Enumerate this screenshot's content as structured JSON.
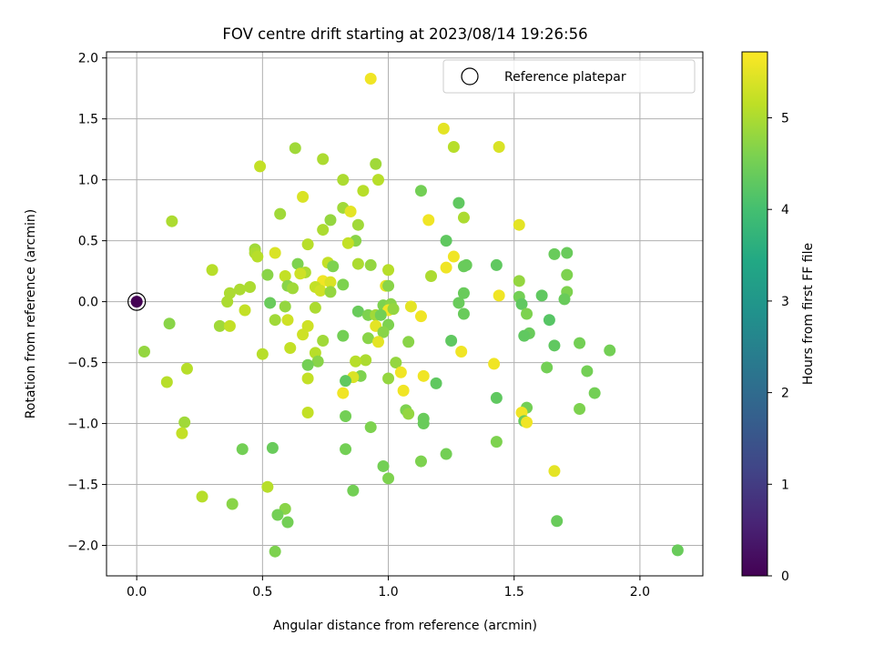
{
  "chart_data": {
    "type": "scatter",
    "title": "FOV centre drift starting at 2023/08/14 19:26:56",
    "xlabel": "Angular distance from reference (arcmin)",
    "ylabel": "Rotation from reference (arcmin)",
    "xlim": [
      -0.12,
      2.25
    ],
    "ylim": [
      -2.25,
      2.05
    ],
    "xticks": [
      0.0,
      0.5,
      1.0,
      1.5,
      2.0
    ],
    "xtick_labels": [
      "0.0",
      "0.5",
      "1.0",
      "1.5",
      "2.0"
    ],
    "yticks": [
      -2.0,
      -1.5,
      -1.0,
      -0.5,
      0.0,
      0.5,
      1.0,
      1.5,
      2.0
    ],
    "ytick_labels": [
      "−2.0",
      "−1.5",
      "−1.0",
      "−0.5",
      "0.0",
      "0.5",
      "1.0",
      "1.5",
      "2.0"
    ],
    "grid": true,
    "legend": {
      "position": "top-right",
      "entries": [
        "Reference platepar"
      ]
    },
    "colorbar": {
      "label": "Hours from first FF file",
      "colormap": "viridis",
      "range": [
        0,
        5.72
      ],
      "ticks": [
        0,
        1,
        2,
        3,
        4,
        5
      ],
      "tick_labels": [
        "0",
        "1",
        "2",
        "3",
        "4",
        "5"
      ]
    },
    "reference_point": {
      "x": 0.0,
      "y": 0.0,
      "c": 0.0
    },
    "points": [
      {
        "x": 0.93,
        "y": 1.83,
        "c": 5.6
      },
      {
        "x": 1.22,
        "y": 1.42,
        "c": 5.5
      },
      {
        "x": 1.44,
        "y": 1.27,
        "c": 5.4
      },
      {
        "x": 1.26,
        "y": 1.27,
        "c": 5.1
      },
      {
        "x": 0.63,
        "y": 1.26,
        "c": 4.9
      },
      {
        "x": 0.74,
        "y": 1.17,
        "c": 5.0
      },
      {
        "x": 0.49,
        "y": 1.11,
        "c": 5.2
      },
      {
        "x": 0.95,
        "y": 1.13,
        "c": 4.9
      },
      {
        "x": 0.82,
        "y": 1.0,
        "c": 5.0
      },
      {
        "x": 0.96,
        "y": 1.0,
        "c": 5.1
      },
      {
        "x": 0.9,
        "y": 0.91,
        "c": 5.1
      },
      {
        "x": 1.13,
        "y": 0.91,
        "c": 4.5
      },
      {
        "x": 0.66,
        "y": 0.86,
        "c": 5.4
      },
      {
        "x": 1.28,
        "y": 0.81,
        "c": 4.3
      },
      {
        "x": 0.82,
        "y": 0.77,
        "c": 4.9
      },
      {
        "x": 0.85,
        "y": 0.74,
        "c": 5.5
      },
      {
        "x": 0.57,
        "y": 0.72,
        "c": 4.9
      },
      {
        "x": 1.3,
        "y": 0.69,
        "c": 5.0
      },
      {
        "x": 0.14,
        "y": 0.66,
        "c": 5.0
      },
      {
        "x": 1.16,
        "y": 0.67,
        "c": 5.6
      },
      {
        "x": 0.77,
        "y": 0.67,
        "c": 4.8
      },
      {
        "x": 0.74,
        "y": 0.59,
        "c": 5.0
      },
      {
        "x": 0.88,
        "y": 0.63,
        "c": 4.9
      },
      {
        "x": 1.52,
        "y": 0.63,
        "c": 5.5
      },
      {
        "x": 1.23,
        "y": 0.5,
        "c": 4.3
      },
      {
        "x": 0.87,
        "y": 0.5,
        "c": 4.7
      },
      {
        "x": 0.68,
        "y": 0.47,
        "c": 5.1
      },
      {
        "x": 0.84,
        "y": 0.48,
        "c": 5.2
      },
      {
        "x": 0.47,
        "y": 0.43,
        "c": 4.9
      },
      {
        "x": 0.47,
        "y": 0.4,
        "c": 5.0
      },
      {
        "x": 0.55,
        "y": 0.4,
        "c": 5.4
      },
      {
        "x": 1.66,
        "y": 0.39,
        "c": 4.4
      },
      {
        "x": 1.71,
        "y": 0.4,
        "c": 4.4
      },
      {
        "x": 1.26,
        "y": 0.37,
        "c": 5.6
      },
      {
        "x": 0.48,
        "y": 0.37,
        "c": 5.1
      },
      {
        "x": 0.64,
        "y": 0.31,
        "c": 4.6
      },
      {
        "x": 0.76,
        "y": 0.32,
        "c": 5.2
      },
      {
        "x": 0.78,
        "y": 0.29,
        "c": 4.6
      },
      {
        "x": 0.88,
        "y": 0.31,
        "c": 5.0
      },
      {
        "x": 0.93,
        "y": 0.3,
        "c": 4.8
      },
      {
        "x": 1.31,
        "y": 0.3,
        "c": 4.4
      },
      {
        "x": 1.43,
        "y": 0.3,
        "c": 4.3
      },
      {
        "x": 1.23,
        "y": 0.28,
        "c": 5.6
      },
      {
        "x": 1.3,
        "y": 0.29,
        "c": 4.4
      },
      {
        "x": 0.3,
        "y": 0.26,
        "c": 5.1
      },
      {
        "x": 1.0,
        "y": 0.26,
        "c": 5.1
      },
      {
        "x": 0.67,
        "y": 0.24,
        "c": 5.0
      },
      {
        "x": 0.65,
        "y": 0.23,
        "c": 5.3
      },
      {
        "x": 0.59,
        "y": 0.21,
        "c": 5.2
      },
      {
        "x": 1.71,
        "y": 0.22,
        "c": 4.6
      },
      {
        "x": 0.52,
        "y": 0.22,
        "c": 4.7
      },
      {
        "x": 1.17,
        "y": 0.21,
        "c": 5.0
      },
      {
        "x": 0.74,
        "y": 0.17,
        "c": 5.6
      },
      {
        "x": 0.77,
        "y": 0.16,
        "c": 5.4
      },
      {
        "x": 1.52,
        "y": 0.17,
        "c": 4.8
      },
      {
        "x": 0.82,
        "y": 0.14,
        "c": 4.6
      },
      {
        "x": 0.99,
        "y": 0.13,
        "c": 5.5
      },
      {
        "x": 1.0,
        "y": 0.13,
        "c": 4.7
      },
      {
        "x": 0.6,
        "y": 0.13,
        "c": 4.7
      },
      {
        "x": 0.71,
        "y": 0.12,
        "c": 5.2
      },
      {
        "x": 0.45,
        "y": 0.12,
        "c": 5.0
      },
      {
        "x": 0.62,
        "y": 0.11,
        "c": 4.9
      },
      {
        "x": 0.41,
        "y": 0.1,
        "c": 5.0
      },
      {
        "x": 0.73,
        "y": 0.09,
        "c": 5.3
      },
      {
        "x": 0.77,
        "y": 0.08,
        "c": 4.8
      },
      {
        "x": 1.71,
        "y": 0.08,
        "c": 4.6
      },
      {
        "x": 0.37,
        "y": 0.07,
        "c": 5.0
      },
      {
        "x": 1.3,
        "y": 0.07,
        "c": 4.4
      },
      {
        "x": 1.44,
        "y": 0.05,
        "c": 5.6
      },
      {
        "x": 1.61,
        "y": 0.05,
        "c": 4.3
      },
      {
        "x": 1.52,
        "y": 0.04,
        "c": 4.5
      },
      {
        "x": 1.7,
        "y": 0.02,
        "c": 4.4
      },
      {
        "x": 0.36,
        "y": 0.0,
        "c": 5.0
      },
      {
        "x": 0.53,
        "y": -0.01,
        "c": 4.4
      },
      {
        "x": 1.28,
        "y": -0.01,
        "c": 4.4
      },
      {
        "x": 0.98,
        "y": -0.03,
        "c": 4.6
      },
      {
        "x": 1.01,
        "y": -0.02,
        "c": 4.7
      },
      {
        "x": 1.53,
        "y": -0.02,
        "c": 4.3
      },
      {
        "x": 1.09,
        "y": -0.04,
        "c": 5.5
      },
      {
        "x": 0.59,
        "y": -0.04,
        "c": 4.8
      },
      {
        "x": 0.71,
        "y": -0.05,
        "c": 5.0
      },
      {
        "x": 1.0,
        "y": -0.07,
        "c": 5.6
      },
      {
        "x": 1.02,
        "y": -0.06,
        "c": 4.8
      },
      {
        "x": 0.43,
        "y": -0.07,
        "c": 5.2
      },
      {
        "x": 0.88,
        "y": -0.08,
        "c": 4.4
      },
      {
        "x": 1.55,
        "y": -0.1,
        "c": 4.6
      },
      {
        "x": 1.3,
        "y": -0.1,
        "c": 4.4
      },
      {
        "x": 0.92,
        "y": -0.11,
        "c": 4.6
      },
      {
        "x": 0.95,
        "y": -0.11,
        "c": 4.9
      },
      {
        "x": 0.97,
        "y": -0.11,
        "c": 4.5
      },
      {
        "x": 1.13,
        "y": -0.12,
        "c": 5.6
      },
      {
        "x": 0.55,
        "y": -0.15,
        "c": 4.9
      },
      {
        "x": 0.6,
        "y": -0.15,
        "c": 5.3
      },
      {
        "x": 1.64,
        "y": -0.15,
        "c": 4.2
      },
      {
        "x": 0.13,
        "y": -0.18,
        "c": 4.7
      },
      {
        "x": 0.33,
        "y": -0.2,
        "c": 4.9
      },
      {
        "x": 0.37,
        "y": -0.2,
        "c": 5.2
      },
      {
        "x": 0.68,
        "y": -0.2,
        "c": 5.3
      },
      {
        "x": 0.95,
        "y": -0.2,
        "c": 5.5
      },
      {
        "x": 1.0,
        "y": -0.19,
        "c": 4.6
      },
      {
        "x": 0.98,
        "y": -0.25,
        "c": 4.7
      },
      {
        "x": 1.56,
        "y": -0.26,
        "c": 4.4
      },
      {
        "x": 0.66,
        "y": -0.27,
        "c": 5.3
      },
      {
        "x": 0.82,
        "y": -0.28,
        "c": 4.5
      },
      {
        "x": 1.54,
        "y": -0.28,
        "c": 4.3
      },
      {
        "x": 0.92,
        "y": -0.3,
        "c": 4.7
      },
      {
        "x": 0.74,
        "y": -0.32,
        "c": 4.9
      },
      {
        "x": 1.25,
        "y": -0.32,
        "c": 4.3
      },
      {
        "x": 0.96,
        "y": -0.33,
        "c": 5.5
      },
      {
        "x": 1.08,
        "y": -0.33,
        "c": 4.7
      },
      {
        "x": 1.76,
        "y": -0.34,
        "c": 4.5
      },
      {
        "x": 1.66,
        "y": -0.36,
        "c": 4.3
      },
      {
        "x": 0.61,
        "y": -0.38,
        "c": 5.2
      },
      {
        "x": 1.88,
        "y": -0.4,
        "c": 4.5
      },
      {
        "x": 0.03,
        "y": -0.41,
        "c": 4.8
      },
      {
        "x": 1.29,
        "y": -0.41,
        "c": 5.6
      },
      {
        "x": 0.71,
        "y": -0.42,
        "c": 5.1
      },
      {
        "x": 0.5,
        "y": -0.43,
        "c": 5.1
      },
      {
        "x": 0.91,
        "y": -0.48,
        "c": 5.0
      },
      {
        "x": 0.87,
        "y": -0.49,
        "c": 5.1
      },
      {
        "x": 0.72,
        "y": -0.49,
        "c": 4.7
      },
      {
        "x": 1.03,
        "y": -0.5,
        "c": 4.8
      },
      {
        "x": 1.42,
        "y": -0.51,
        "c": 5.6
      },
      {
        "x": 0.68,
        "y": -0.52,
        "c": 4.5
      },
      {
        "x": 1.63,
        "y": -0.54,
        "c": 4.5
      },
      {
        "x": 0.2,
        "y": -0.55,
        "c": 5.1
      },
      {
        "x": 1.79,
        "y": -0.57,
        "c": 4.5
      },
      {
        "x": 1.05,
        "y": -0.58,
        "c": 5.6
      },
      {
        "x": 0.89,
        "y": -0.61,
        "c": 4.6
      },
      {
        "x": 0.86,
        "y": -0.62,
        "c": 5.4
      },
      {
        "x": 1.14,
        "y": -0.61,
        "c": 5.6
      },
      {
        "x": 0.68,
        "y": -0.63,
        "c": 5.2
      },
      {
        "x": 1.0,
        "y": -0.63,
        "c": 4.8
      },
      {
        "x": 0.83,
        "y": -0.65,
        "c": 4.3
      },
      {
        "x": 0.12,
        "y": -0.66,
        "c": 5.1
      },
      {
        "x": 1.19,
        "y": -0.67,
        "c": 4.3
      },
      {
        "x": 1.06,
        "y": -0.73,
        "c": 5.6
      },
      {
        "x": 0.82,
        "y": -0.75,
        "c": 5.6
      },
      {
        "x": 1.82,
        "y": -0.75,
        "c": 4.5
      },
      {
        "x": 1.43,
        "y": -0.79,
        "c": 4.3
      },
      {
        "x": 1.55,
        "y": -0.87,
        "c": 4.5
      },
      {
        "x": 1.76,
        "y": -0.88,
        "c": 4.6
      },
      {
        "x": 1.07,
        "y": -0.89,
        "c": 4.6
      },
      {
        "x": 1.08,
        "y": -0.92,
        "c": 4.8
      },
      {
        "x": 1.53,
        "y": -0.91,
        "c": 5.6
      },
      {
        "x": 0.68,
        "y": -0.91,
        "c": 5.2
      },
      {
        "x": 0.83,
        "y": -0.94,
        "c": 4.5
      },
      {
        "x": 1.14,
        "y": -0.96,
        "c": 4.4
      },
      {
        "x": 1.54,
        "y": -0.98,
        "c": 4.4
      },
      {
        "x": 1.55,
        "y": -0.99,
        "c": 5.6
      },
      {
        "x": 1.14,
        "y": -1.0,
        "c": 4.4
      },
      {
        "x": 0.19,
        "y": -0.99,
        "c": 4.9
      },
      {
        "x": 0.93,
        "y": -1.03,
        "c": 4.6
      },
      {
        "x": 0.18,
        "y": -1.08,
        "c": 5.2
      },
      {
        "x": 1.43,
        "y": -1.15,
        "c": 4.6
      },
      {
        "x": 0.42,
        "y": -1.21,
        "c": 4.5
      },
      {
        "x": 0.54,
        "y": -1.2,
        "c": 4.4
      },
      {
        "x": 0.83,
        "y": -1.21,
        "c": 4.5
      },
      {
        "x": 1.23,
        "y": -1.25,
        "c": 4.5
      },
      {
        "x": 1.13,
        "y": -1.31,
        "c": 4.6
      },
      {
        "x": 0.98,
        "y": -1.35,
        "c": 4.5
      },
      {
        "x": 1.66,
        "y": -1.39,
        "c": 5.5
      },
      {
        "x": 1.0,
        "y": -1.45,
        "c": 4.6
      },
      {
        "x": 0.52,
        "y": -1.52,
        "c": 5.1
      },
      {
        "x": 0.86,
        "y": -1.55,
        "c": 4.5
      },
      {
        "x": 0.26,
        "y": -1.6,
        "c": 5.1
      },
      {
        "x": 0.38,
        "y": -1.66,
        "c": 4.7
      },
      {
        "x": 0.59,
        "y": -1.7,
        "c": 4.7
      },
      {
        "x": 0.56,
        "y": -1.75,
        "c": 4.5
      },
      {
        "x": 0.6,
        "y": -1.81,
        "c": 4.5
      },
      {
        "x": 1.67,
        "y": -1.8,
        "c": 4.4
      },
      {
        "x": 0.55,
        "y": -2.05,
        "c": 4.6
      },
      {
        "x": 2.15,
        "y": -2.04,
        "c": 4.4
      }
    ]
  }
}
